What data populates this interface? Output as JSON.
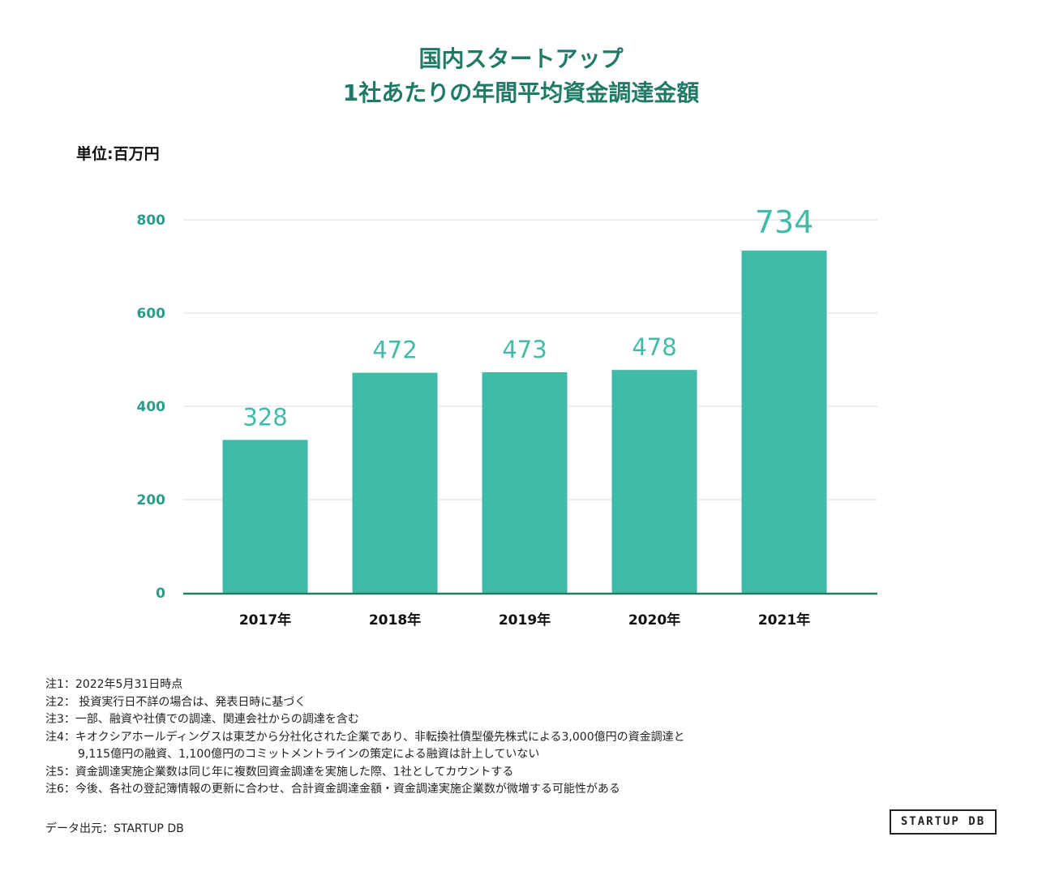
{
  "colors": {
    "title": "#1f7a66",
    "bar": "#3fbba6",
    "label": "#3fbba6",
    "axis": "#2a7a68",
    "grid": "#eeeeee",
    "tick": "#2a9d8a"
  },
  "unit_label": "単位:百万円",
  "chart_data": {
    "type": "bar",
    "title": [
      "国内スタートアップ",
      "1社あたりの年間平均資金調達金額"
    ],
    "categories": [
      "2017年",
      "2018年",
      "2019年",
      "2020年",
      "2021年"
    ],
    "values": [
      328,
      472,
      473,
      478,
      734
    ],
    "data_labels": [
      "328",
      "472",
      "473",
      "478",
      "734"
    ],
    "y_ticks": [
      "0",
      "200",
      "400",
      "600",
      "800"
    ],
    "ylim": [
      0,
      800
    ],
    "grid": true,
    "xlabel": "",
    "ylabel": "単位:百万円"
  },
  "notes": [
    "注1：2022年5月31日時点",
    "注2： 投資実行日不詳の場合は、発表日時に基づく",
    "注3：一部、融資や社債での調達、関連会社からの調達を含む",
    "注4：キオクシアホールディングスは東芝から分社化された企業であり、非転換社債型優先株式による3,000億円の資金調達と",
    "9,115億円の融資、1,100億円のコミットメントラインの策定による融資は計上していない",
    "注5：資金調達実施企業数は同じ年に複数回資金調達を実施した際、1社としてカウントする",
    "注6：今後、各社の登記簿情報の更新に合わせ、合計資金調達金額・資金調達実施企業数が微増する可能性がある"
  ],
  "source": "データ出元：STARTUP DB",
  "logo": "STARTUP DB"
}
